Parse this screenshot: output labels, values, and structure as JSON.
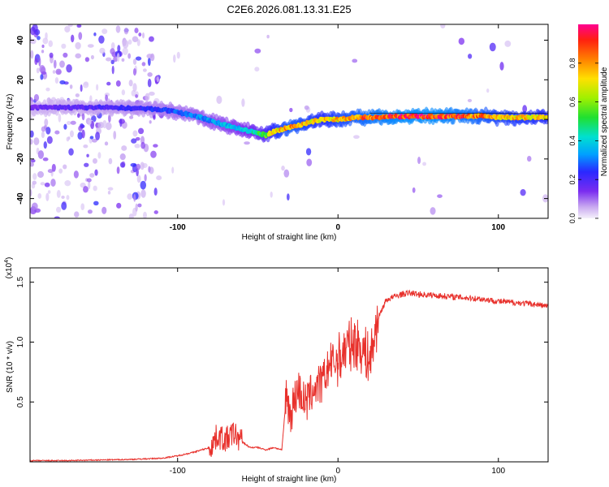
{
  "title": "C2E6.2026.081.13.31.E25",
  "chart_data": [
    {
      "type": "heatmap",
      "title": "C2E6.2026.081.13.31.E25",
      "xlabel": "Height of straight line (km)",
      "ylabel": "Frequency (Hz)",
      "xlim": [
        -192,
        131
      ],
      "ylim": [
        -50,
        48
      ],
      "xticks": [
        -100,
        0,
        100
      ],
      "xtick_labels": [
        "-100",
        "0",
        "100"
      ],
      "yticks": [
        -40,
        -20,
        0,
        20,
        40
      ],
      "ytick_labels": [
        "-40",
        "-20",
        "0",
        "20",
        "40"
      ],
      "ridge": {
        "x": [
          -190,
          -140,
          -110,
          -90,
          -70,
          -55,
          -45,
          -40,
          -30,
          -20,
          -10,
          0,
          10,
          20,
          40,
          60,
          80,
          90,
          100,
          131
        ],
        "freq": [
          6,
          6,
          5,
          2,
          -3,
          -6,
          -8,
          -6,
          -4,
          -2,
          0,
          0,
          1,
          1,
          1.5,
          1.5,
          1.5,
          2,
          1,
          1
        ],
        "amplitude": [
          0.15,
          0.2,
          0.25,
          0.3,
          0.35,
          0.4,
          0.55,
          0.7,
          0.8,
          0.75,
          0.7,
          0.75,
          0.8,
          0.85,
          0.9,
          0.9,
          0.85,
          0.8,
          0.75,
          0.7
        ]
      },
      "colorbar": {
        "label": "Normalized spectral amplitude",
        "range": [
          0,
          1
        ],
        "ticks": [
          0.0,
          0.2,
          0.4,
          0.6,
          0.8
        ],
        "tick_labels": [
          "0.0",
          "0.2",
          "0.4",
          "0.6",
          "0.8"
        ]
      }
    },
    {
      "type": "line",
      "xlabel": "Height of straight line (km)",
      "ylabel": "SNR (10 * v/v)",
      "y_scale_label": "(x10",
      "y_scale_exponent": "4",
      "xlim": [
        -192,
        131
      ],
      "ylim": [
        0,
        1.62
      ],
      "xticks": [
        -100,
        0,
        100
      ],
      "xtick_labels": [
        "-100",
        "0",
        "100"
      ],
      "yticks": [
        0.5,
        1.0,
        1.5
      ],
      "ytick_labels": [
        "0.5",
        "1.0",
        "1.5"
      ],
      "color": "#e8312c",
      "series": [
        {
          "name": "SNR",
          "x": [
            -192,
            -170,
            -150,
            -130,
            -110,
            -100,
            -90,
            -80,
            -75,
            -70,
            -65,
            -60,
            -55,
            -50,
            -45,
            -40,
            -35,
            -32,
            -30,
            -25,
            -20,
            -15,
            -10,
            -5,
            0,
            5,
            10,
            15,
            20,
            25,
            30,
            35,
            40,
            45,
            50,
            60,
            70,
            80,
            90,
            100,
            110,
            120,
            131
          ],
          "y": [
            0.01,
            0.01,
            0.015,
            0.02,
            0.03,
            0.05,
            0.08,
            0.12,
            0.22,
            0.18,
            0.24,
            0.17,
            0.12,
            0.12,
            0.1,
            0.12,
            0.1,
            0.6,
            0.38,
            0.62,
            0.48,
            0.62,
            0.65,
            0.82,
            0.85,
            0.95,
            1.0,
            0.95,
            0.85,
            1.2,
            1.35,
            1.38,
            1.4,
            1.41,
            1.4,
            1.39,
            1.38,
            1.37,
            1.36,
            1.34,
            1.33,
            1.32,
            1.3
          ]
        }
      ],
      "noise": 0.03,
      "spike_regions": [
        [
          -80,
          -60,
          0.22
        ],
        [
          -33,
          -3,
          0.35
        ],
        [
          -3,
          25,
          0.45
        ]
      ]
    }
  ]
}
